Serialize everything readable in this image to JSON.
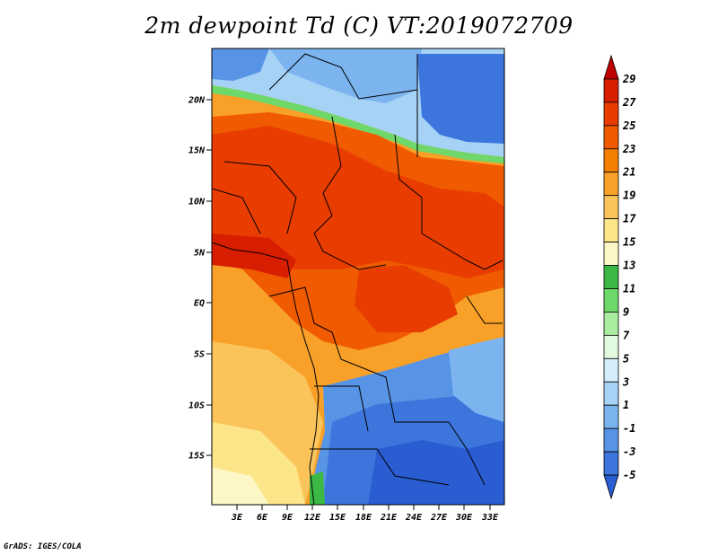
{
  "title": "2m dewpoint Td (C) VT:2019072709",
  "credit": "GrADS: IGES/COLA",
  "lat_ticks": [
    "20N",
    "15N",
    "10N",
    "5N",
    "EQ",
    "5S",
    "10S",
    "15S"
  ],
  "lon_ticks": [
    "3E",
    "6E",
    "9E",
    "12E",
    "15E",
    "18E",
    "21E",
    "24E",
    "27E",
    "30E",
    "33E"
  ],
  "colorbar": {
    "labels": [
      "29",
      "27",
      "25",
      "23",
      "21",
      "19",
      "17",
      "15",
      "13",
      "11",
      "9",
      "7",
      "5",
      "3",
      "1",
      "-1",
      "-3",
      "-5"
    ],
    "colors_top_to_bottom": [
      "#c00000",
      "#d81e00",
      "#e83c00",
      "#f05a00",
      "#f57f00",
      "#f8a028",
      "#fbc45a",
      "#fde68a",
      "#fdf7c6",
      "#3cb844",
      "#6ed86a",
      "#aaeca0",
      "#e2fae0",
      "#d6eefc",
      "#a6d2f6",
      "#7cb4f0",
      "#5894e6",
      "#3c76dc",
      "#2a5cd2"
    ]
  }
}
